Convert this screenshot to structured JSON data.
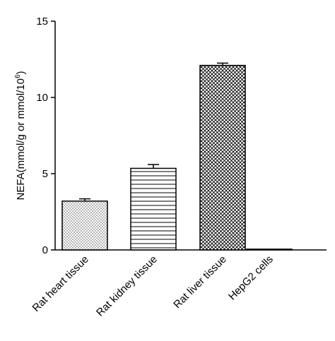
{
  "chart_data": {
    "type": "bar",
    "categories": [
      "Rat heart tissue",
      "Rat kidney tissue",
      "Rat liver tissue",
      "HepG2 cells"
    ],
    "values": [
      3.2,
      5.35,
      12.1,
      0.05
    ],
    "errors": [
      0.15,
      0.25,
      0.15,
      0.0
    ],
    "patterns": [
      "dots",
      "horizontal-lines",
      "crosshatch",
      "none"
    ],
    "ylabel_main": "NEFA(mmol/g or mmol/10",
    "ylabel_sup": "6",
    "ylabel_end": ")",
    "ylim": [
      0,
      15
    ],
    "yticks": [
      "0",
      "5",
      "10",
      "15"
    ],
    "ytick_values": [
      0,
      5,
      10,
      15
    ],
    "bar_fill": "#ffffff",
    "line_color": "#000000"
  }
}
